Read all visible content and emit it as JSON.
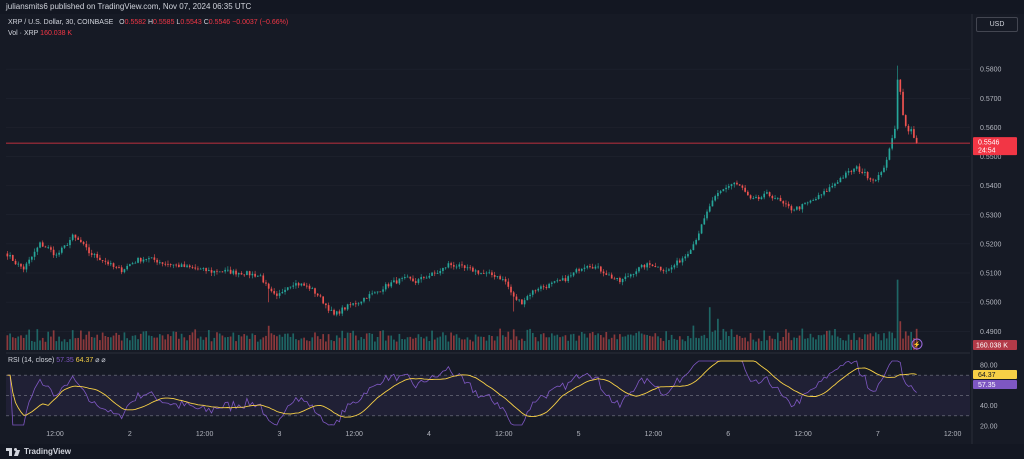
{
  "header": {
    "published_text": "juliansmits6 published on TradingView.com, Nov 07, 2024 06:35 UTC"
  },
  "legend": {
    "symbol": "XRP / U.S. Dollar, 30, COINBASE",
    "open_label": "O",
    "open": "0.5582",
    "high_label": "H",
    "high": "0.5585",
    "low_label": "L",
    "low": "0.5543",
    "close_label": "C",
    "close": "0.5546",
    "change": "−0.0037 (−0.66%)",
    "vol_label": "Vol · XRP",
    "vol_value": "160.038 K",
    "rsi_label": "RSI (14, close)",
    "rsi_value": "57.35",
    "rsi_ma_value": "64.37",
    "rsi_icons": "⌀ ⌀"
  },
  "currency_button": "USD",
  "footer": {
    "brand": "TradingView"
  },
  "colors": {
    "up": "#26a69a",
    "down": "#ef5350",
    "rsi_line": "#7e57c2",
    "rsi_ma": "#f7d046",
    "price_line": "#f23645",
    "background": "#161a25"
  },
  "chart_data": {
    "type": "candlestick",
    "symbol": "XRP / U.S. Dollar",
    "interval": "30",
    "exchange": "COINBASE",
    "x_ticks": [
      "12:00",
      "2",
      "12:00",
      "3",
      "12:00",
      "4",
      "12:00",
      "5",
      "12:00",
      "6",
      "12:00",
      "7",
      "12:00"
    ],
    "price_axis": {
      "ticks": [
        "0.5800",
        "0.5700",
        "0.5600",
        "0.5500",
        "0.5400",
        "0.5300",
        "0.5200",
        "0.5100",
        "0.5000",
        "0.4900"
      ],
      "range": [
        0.487,
        0.59
      ]
    },
    "last_price": "0.5546",
    "countdown": "24:54",
    "volume_last": "160.038 K",
    "price_path": [
      [
        0,
        0.5165
      ],
      [
        3,
        0.5135
      ],
      [
        6,
        0.5115
      ],
      [
        9,
        0.5155
      ],
      [
        12,
        0.52
      ],
      [
        15,
        0.5185
      ],
      [
        18,
        0.516
      ],
      [
        21,
        0.519
      ],
      [
        24,
        0.5225
      ],
      [
        27,
        0.5205
      ],
      [
        30,
        0.517
      ],
      [
        33,
        0.5155
      ],
      [
        36,
        0.514
      ],
      [
        39,
        0.512
      ],
      [
        42,
        0.511
      ],
      [
        45,
        0.513
      ],
      [
        48,
        0.5145
      ],
      [
        51,
        0.515
      ],
      [
        54,
        0.5145
      ],
      [
        57,
        0.5135
      ],
      [
        60,
        0.513
      ],
      [
        63,
        0.5125
      ],
      [
        66,
        0.512
      ],
      [
        69,
        0.5115
      ],
      [
        72,
        0.511
      ],
      [
        75,
        0.5105
      ],
      [
        78,
        0.5108
      ],
      [
        81,
        0.5105
      ],
      [
        84,
        0.5102
      ],
      [
        87,
        0.51
      ],
      [
        90,
        0.5095
      ],
      [
        93,
        0.509
      ],
      [
        96,
        0.504
      ],
      [
        99,
        0.5015
      ],
      [
        102,
        0.505
      ],
      [
        105,
        0.5065
      ],
      [
        108,
        0.506
      ],
      [
        111,
        0.505
      ],
      [
        114,
        0.5025
      ],
      [
        117,
        0.499
      ],
      [
        120,
        0.4955
      ],
      [
        123,
        0.4975
      ],
      [
        126,
        0.499
      ],
      [
        129,
        0.5
      ],
      [
        132,
        0.502
      ],
      [
        135,
        0.503
      ],
      [
        138,
        0.505
      ],
      [
        141,
        0.5065
      ],
      [
        144,
        0.5075
      ],
      [
        147,
        0.508
      ],
      [
        150,
        0.507
      ],
      [
        153,
        0.5085
      ],
      [
        156,
        0.5095
      ],
      [
        159,
        0.5105
      ],
      [
        162,
        0.513
      ],
      [
        165,
        0.5125
      ],
      [
        168,
        0.5115
      ],
      [
        171,
        0.511
      ],
      [
        174,
        0.51
      ],
      [
        177,
        0.5095
      ],
      [
        180,
        0.509
      ],
      [
        183,
        0.507
      ],
      [
        186,
        0.5015
      ],
      [
        189,
        0.5
      ],
      [
        192,
        0.503
      ],
      [
        195,
        0.505
      ],
      [
        198,
        0.5055
      ],
      [
        201,
        0.5065
      ],
      [
        204,
        0.5075
      ],
      [
        207,
        0.509
      ],
      [
        210,
        0.5115
      ],
      [
        213,
        0.513
      ],
      [
        216,
        0.512
      ],
      [
        219,
        0.5105
      ],
      [
        222,
        0.5085
      ],
      [
        225,
        0.507
      ],
      [
        228,
        0.509
      ],
      [
        231,
        0.511
      ],
      [
        234,
        0.5125
      ],
      [
        237,
        0.513
      ],
      [
        240,
        0.5115
      ],
      [
        243,
        0.511
      ],
      [
        246,
        0.5135
      ],
      [
        249,
        0.516
      ],
      [
        252,
        0.52
      ],
      [
        255,
        0.526
      ],
      [
        258,
        0.533
      ],
      [
        261,
        0.537
      ],
      [
        264,
        0.5395
      ],
      [
        267,
        0.541
      ],
      [
        270,
        0.539
      ],
      [
        273,
        0.535
      ],
      [
        276,
        0.5355
      ],
      [
        279,
        0.537
      ],
      [
        282,
        0.536
      ],
      [
        285,
        0.5335
      ],
      [
        288,
        0.532
      ],
      [
        291,
        0.5325
      ],
      [
        294,
        0.534
      ],
      [
        297,
        0.5355
      ],
      [
        300,
        0.5375
      ],
      [
        303,
        0.54
      ],
      [
        306,
        0.5425
      ],
      [
        309,
        0.5445
      ],
      [
        312,
        0.546
      ],
      [
        315,
        0.544
      ],
      [
        318,
        0.542
      ],
      [
        321,
        0.544
      ],
      [
        324,
        0.552
      ],
      [
        326,
        0.56
      ],
      [
        327,
        0.577
      ],
      [
        328,
        0.572
      ],
      [
        329,
        0.565
      ],
      [
        330,
        0.56
      ],
      [
        331,
        0.5585
      ],
      [
        332,
        0.559
      ],
      [
        333,
        0.557
      ],
      [
        334,
        0.5546
      ]
    ],
    "volume_spikes": [
      [
        96,
        4
      ],
      [
        186,
        4
      ],
      [
        252,
        3
      ],
      [
        258,
        6
      ],
      [
        261,
        4
      ],
      [
        264,
        3
      ],
      [
        327,
        14
      ],
      [
        328,
        5
      ]
    ],
    "rsi": {
      "name": "RSI (14, close)",
      "value": "57.35",
      "ma_value": "64.37",
      "axis_ticks": [
        "80.00",
        "60.00",
        "40.00",
        "20.00"
      ],
      "range": [
        20,
        85
      ],
      "bands": [
        30,
        70
      ]
    }
  }
}
